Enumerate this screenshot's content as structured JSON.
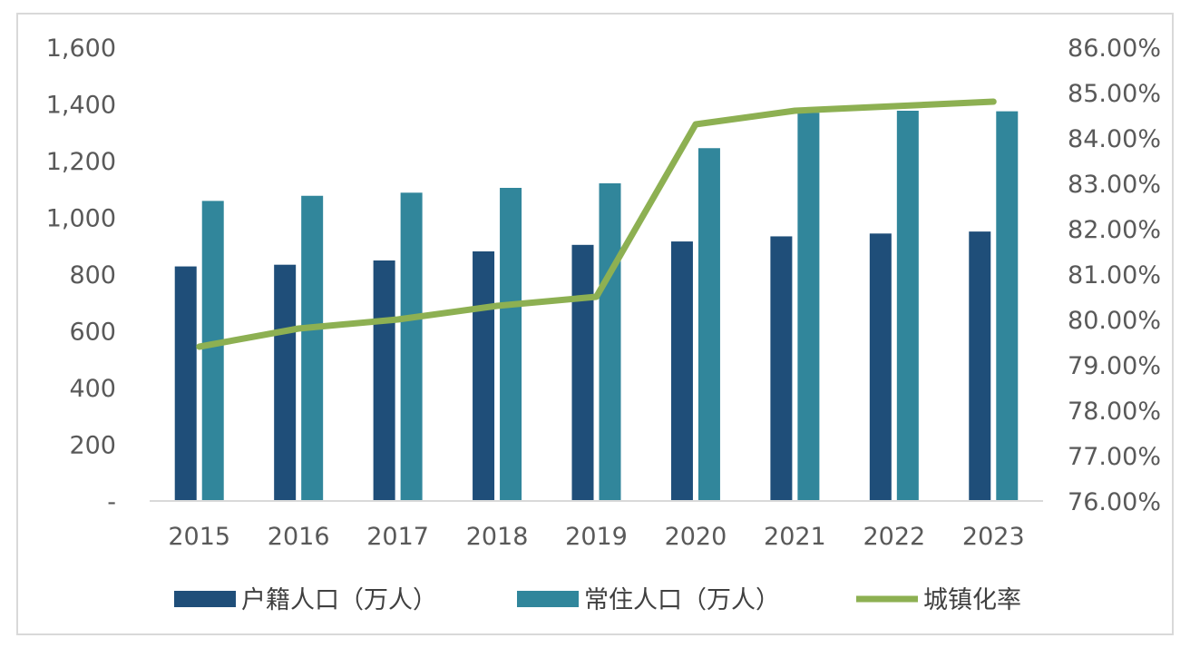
{
  "chart_data": {
    "type": "bar",
    "title": "",
    "xlabel": "",
    "ylabel": "",
    "categories": [
      "2015",
      "2016",
      "2017",
      "2018",
      "2019",
      "2020",
      "2021",
      "2022",
      "2023"
    ],
    "series": [
      {
        "name": "户籍人口（万人）",
        "type": "bar",
        "axis": "left",
        "color": "#1f4e79",
        "values": [
          827,
          833,
          848,
          880,
          903,
          915,
          933,
          943,
          950
        ]
      },
      {
        "name": "常住人口（万人）",
        "type": "bar",
        "axis": "left",
        "color": "#31869b",
        "values": [
          1058,
          1076,
          1087,
          1104,
          1120,
          1244,
          1369,
          1376,
          1374
        ]
      },
      {
        "name": "城镇化率",
        "type": "line",
        "axis": "right",
        "color": "#8db052",
        "values": [
          79.4,
          79.8,
          80.0,
          80.3,
          80.5,
          84.3,
          84.6,
          84.7,
          84.8
        ]
      }
    ],
    "ylim_left": [
      0,
      1600
    ],
    "yticks_left": [
      "-",
      "200",
      "400",
      "600",
      "800",
      "1,000",
      "1,200",
      "1,400",
      "1,600"
    ],
    "ylim_right": [
      76,
      86
    ],
    "yticks_right": [
      "76.00%",
      "77.00%",
      "78.00%",
      "79.00%",
      "80.00%",
      "81.00%",
      "82.00%",
      "83.00%",
      "84.00%",
      "85.00%",
      "86.00%"
    ],
    "grid": false,
    "legend_position": "bottom"
  }
}
